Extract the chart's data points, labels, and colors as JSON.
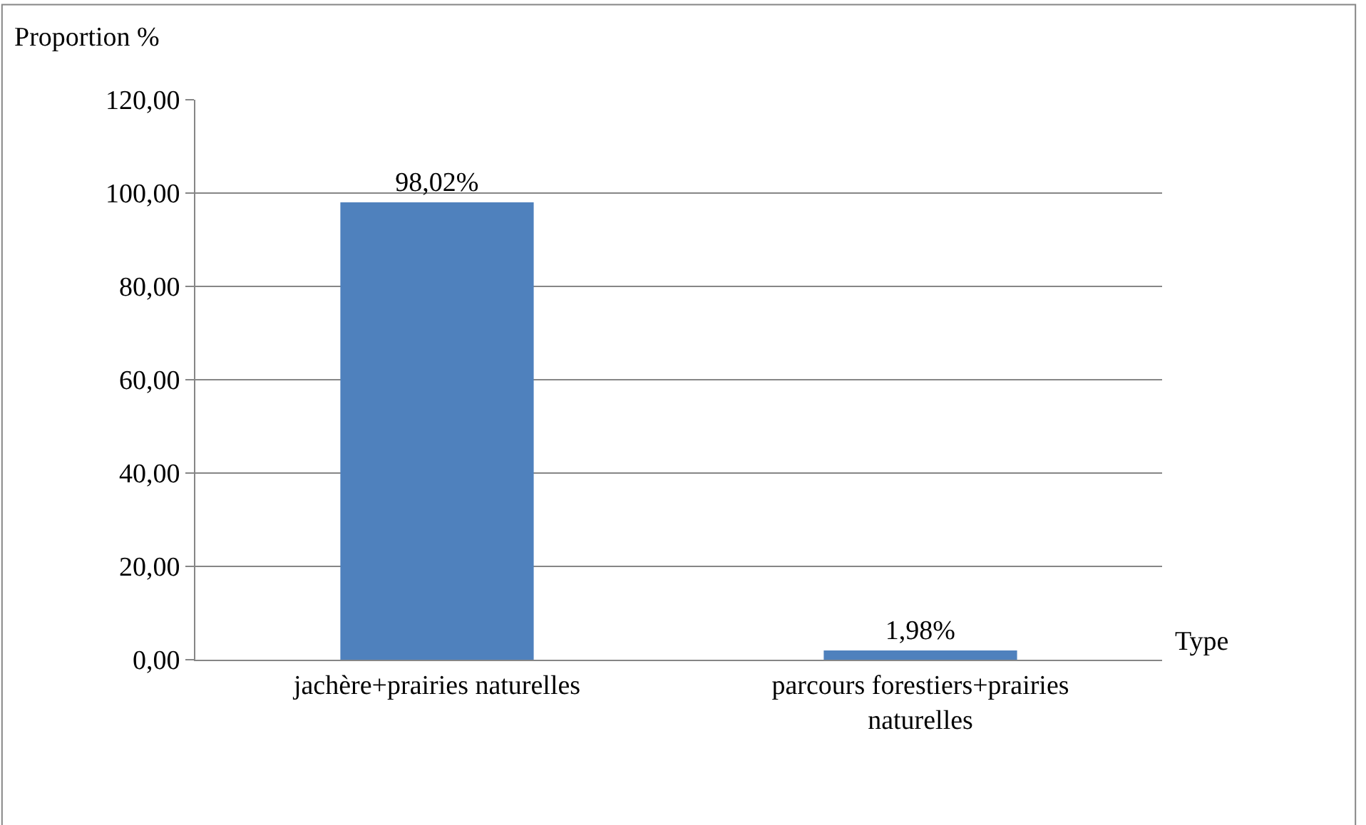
{
  "chart_data": {
    "type": "bar",
    "ylabel": "Proportion %",
    "xlabel": "Type",
    "categories": [
      "jachère+prairies naturelles",
      "parcours forestiers+prairies naturelles"
    ],
    "values": [
      98.02,
      1.98
    ],
    "color": "#4f81bd",
    "value_labels": [
      "98,02%",
      "1,98%"
    ],
    "ylim": [
      0,
      120
    ],
    "yticks": [
      {
        "value": 0,
        "label": "0,00"
      },
      {
        "value": 20,
        "label": "20,00"
      },
      {
        "value": 40,
        "label": "40,00"
      },
      {
        "value": 60,
        "label": "60,00"
      },
      {
        "value": 80,
        "label": "80,00"
      },
      {
        "value": 100,
        "label": "100,00"
      },
      {
        "value": 120,
        "label": "120,00"
      }
    ],
    "grid": "y",
    "legend": false
  }
}
